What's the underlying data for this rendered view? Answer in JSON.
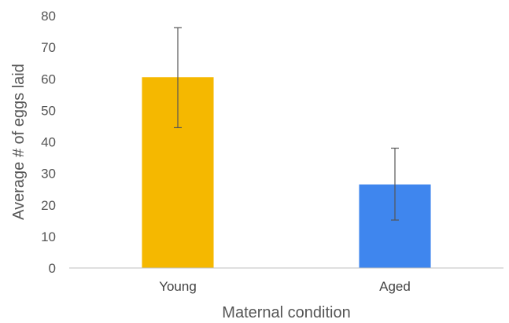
{
  "chart_data": {
    "type": "bar",
    "categories": [
      "Young",
      "Aged"
    ],
    "values": [
      60.5,
      26.5
    ],
    "error_bars": {
      "upper": [
        76.2,
        38.0
      ],
      "lower": [
        44.5,
        15.2
      ]
    },
    "colors": [
      "#F5B800",
      "#3F86EE"
    ],
    "xlabel": "Maternal condition",
    "ylabel": "Average # of eggs laid",
    "ylim": [
      0,
      80
    ],
    "yticks": [
      0,
      10,
      20,
      30,
      40,
      50,
      60,
      70,
      80
    ],
    "grid": false,
    "legend": "none"
  }
}
